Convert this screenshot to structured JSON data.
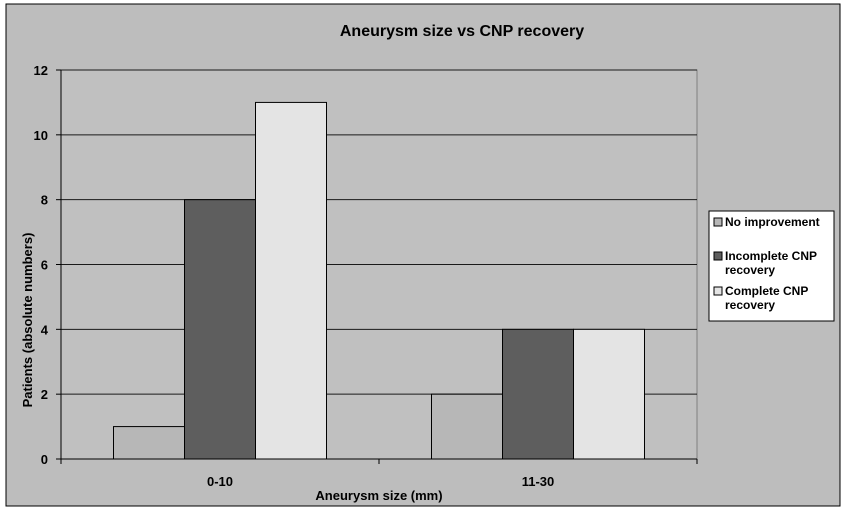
{
  "colors": {
    "chart_area": "#bdbdbd",
    "plot_area": "#c0c0c0",
    "gridline": "#1a1a1a",
    "series": [
      "#b7b7b7",
      "#5e5e5e",
      "#e4e4e4"
    ]
  },
  "chart_data": {
    "type": "bar",
    "title": "Aneurysm size  vs CNP recovery",
    "xlabel": "Aneurysm size (mm)",
    "ylabel": "Patients (absolute numbers)",
    "categories": [
      "0-10",
      "11-30"
    ],
    "series": [
      {
        "name": "No improvement",
        "values": [
          1,
          2
        ]
      },
      {
        "name": "Incomplete CNP recovery",
        "values": [
          8,
          4
        ]
      },
      {
        "name": "Complete CNP recovery",
        "values": [
          11,
          4
        ]
      }
    ],
    "ylim": [
      0,
      12
    ],
    "yticks": [
      0,
      2,
      4,
      6,
      8,
      10,
      12
    ],
    "grid": true,
    "legend_position": "right"
  }
}
